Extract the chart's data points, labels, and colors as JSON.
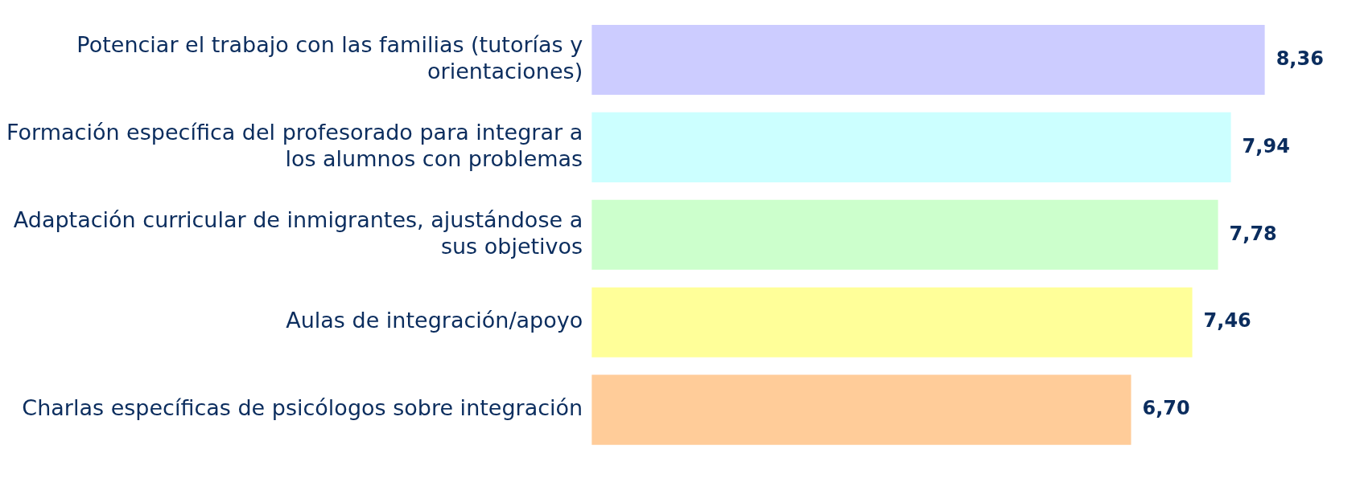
{
  "chart_data": {
    "type": "bar",
    "orientation": "horizontal",
    "legend": false,
    "value_labels": [
      "8,36",
      "7,94",
      "7,78",
      "7,46",
      "6,70"
    ],
    "categories": [
      "Potenciar el trabajo con las familias (tutorías y orientaciones)",
      "Formación específica del profesorado para integrar a los alumnos con problemas",
      "Adaptación curricular de inmigrantes, ajustándose a sus objetivos",
      "Aulas de integración/apoyo",
      "Charlas específicas de psicólogos sobre integración"
    ],
    "values": [
      8.36,
      7.94,
      7.78,
      7.46,
      6.7
    ],
    "colors": [
      "#ccccff",
      "#ccffff",
      "#ccffcc",
      "#ffff99",
      "#ffcc99"
    ]
  }
}
